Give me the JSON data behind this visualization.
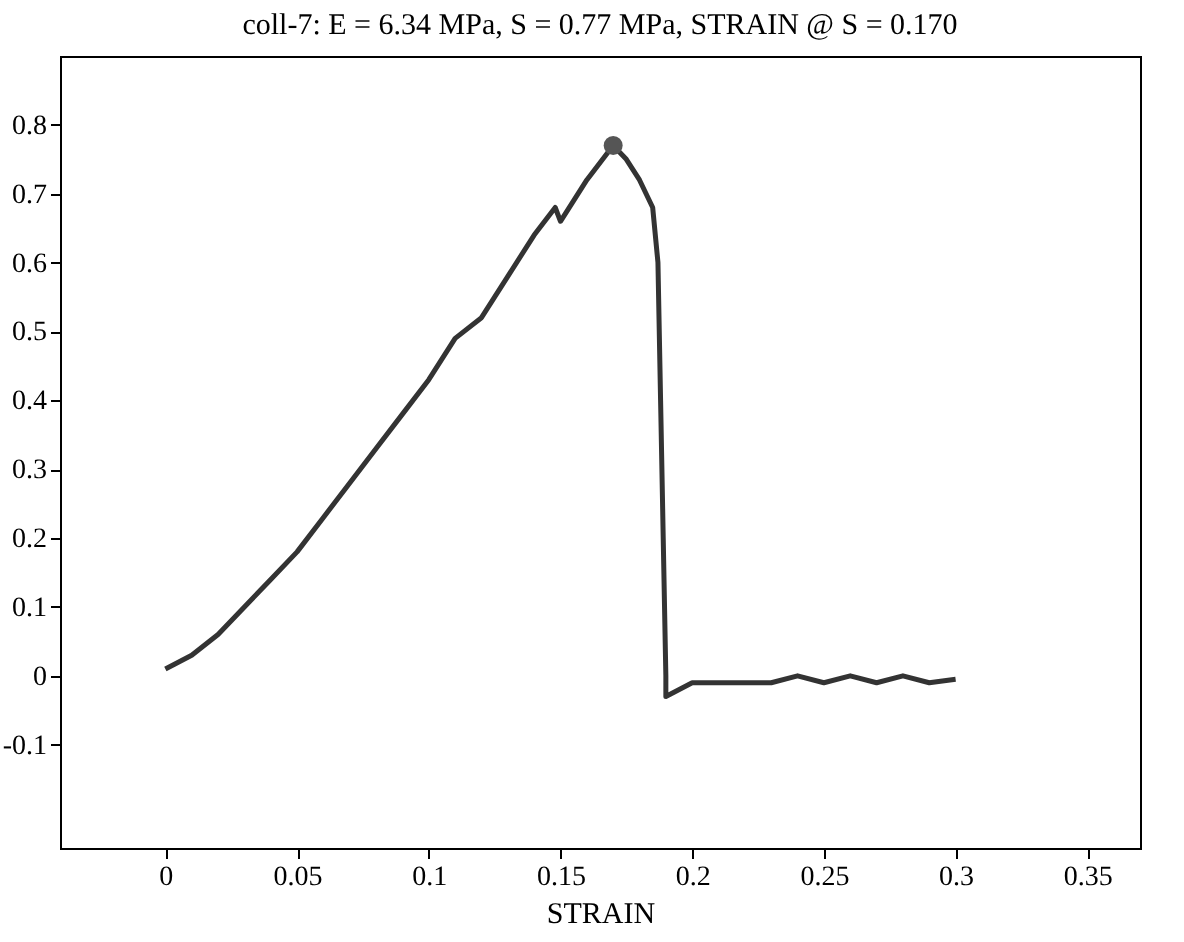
{
  "chart_data": {
    "type": "line",
    "title": "coll-7: E  = 6.34 MPa, S = 0.77 MPa, STRAIN @ S = 0.170",
    "xlabel": "STRAIN",
    "xlim": [
      -0.04,
      0.37
    ],
    "xticks": [
      0,
      0.05,
      0.1,
      0.15,
      0.2,
      0.25,
      0.3,
      0.35
    ],
    "ylim": [
      -0.25,
      0.9
    ],
    "yticks": [
      -0.1,
      0,
      0.1,
      0.2,
      0.3,
      0.4,
      0.5,
      0.6,
      0.7,
      0.8
    ],
    "grid": false,
    "series": [
      {
        "color": "#333333",
        "marker": "none",
        "x": [
          0,
          0.01,
          0.02,
          0.03,
          0.04,
          0.05,
          0.06,
          0.07,
          0.08,
          0.09,
          0.1,
          0.11,
          0.12,
          0.13,
          0.14,
          0.148,
          0.15,
          0.16,
          0.17,
          0.175,
          0.18,
          0.185,
          0.187,
          0.188,
          0.189,
          0.19,
          0.19,
          0.2,
          0.21,
          0.22,
          0.23,
          0.24,
          0.25,
          0.26,
          0.27,
          0.28,
          0.29,
          0.3
        ],
        "values": [
          0.01,
          0.03,
          0.06,
          0.1,
          0.14,
          0.18,
          0.23,
          0.28,
          0.33,
          0.38,
          0.43,
          0.49,
          0.52,
          0.58,
          0.64,
          0.68,
          0.66,
          0.72,
          0.77,
          0.75,
          0.72,
          0.68,
          0.6,
          0.4,
          0.2,
          0.0,
          -0.03,
          -0.01,
          -0.01,
          -0.01,
          -0.01,
          0.0,
          -0.01,
          0.0,
          -0.01,
          0.0,
          -0.01,
          -0.005
        ]
      },
      {
        "type": "scatter",
        "color": "#555555",
        "marker": "circle",
        "x": [
          0.17
        ],
        "values": [
          0.77
        ]
      }
    ]
  }
}
